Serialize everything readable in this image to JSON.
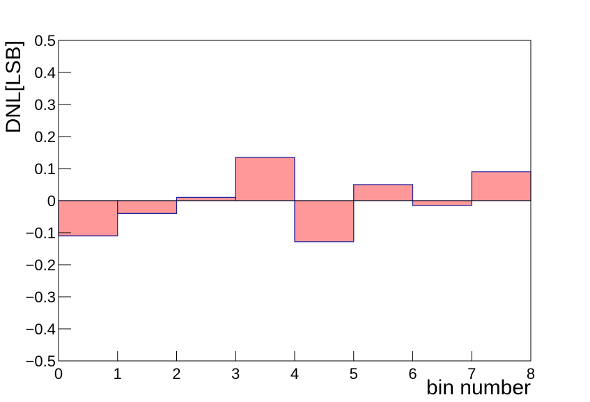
{
  "chart_data": {
    "type": "histogram",
    "xlabel": "bin number",
    "ylabel": "DNL[LSB]",
    "bins": [
      0,
      1,
      2,
      3,
      4,
      5,
      6,
      7,
      8
    ],
    "values": [
      -0.11,
      -0.04,
      0.01,
      0.135,
      -0.128,
      0.05,
      -0.015,
      0.09
    ],
    "color": "#ff9999",
    "edgecolor": "#2020a0",
    "xlim": [
      0,
      8
    ],
    "xticks": [
      0,
      1,
      2,
      3,
      4,
      5,
      6,
      7,
      8
    ],
    "ylim": [
      -0.5,
      0.5
    ],
    "yticks": [
      {
        "value": -0.5,
        "label": "−0.5"
      },
      {
        "value": -0.4,
        "label": "−0.4"
      },
      {
        "value": -0.3,
        "label": "−0.3"
      },
      {
        "value": -0.2,
        "label": "−0.2"
      },
      {
        "value": -0.1,
        "label": "−0.1"
      },
      0,
      0.1,
      0.2,
      0.3,
      0.4,
      0.5
    ]
  }
}
